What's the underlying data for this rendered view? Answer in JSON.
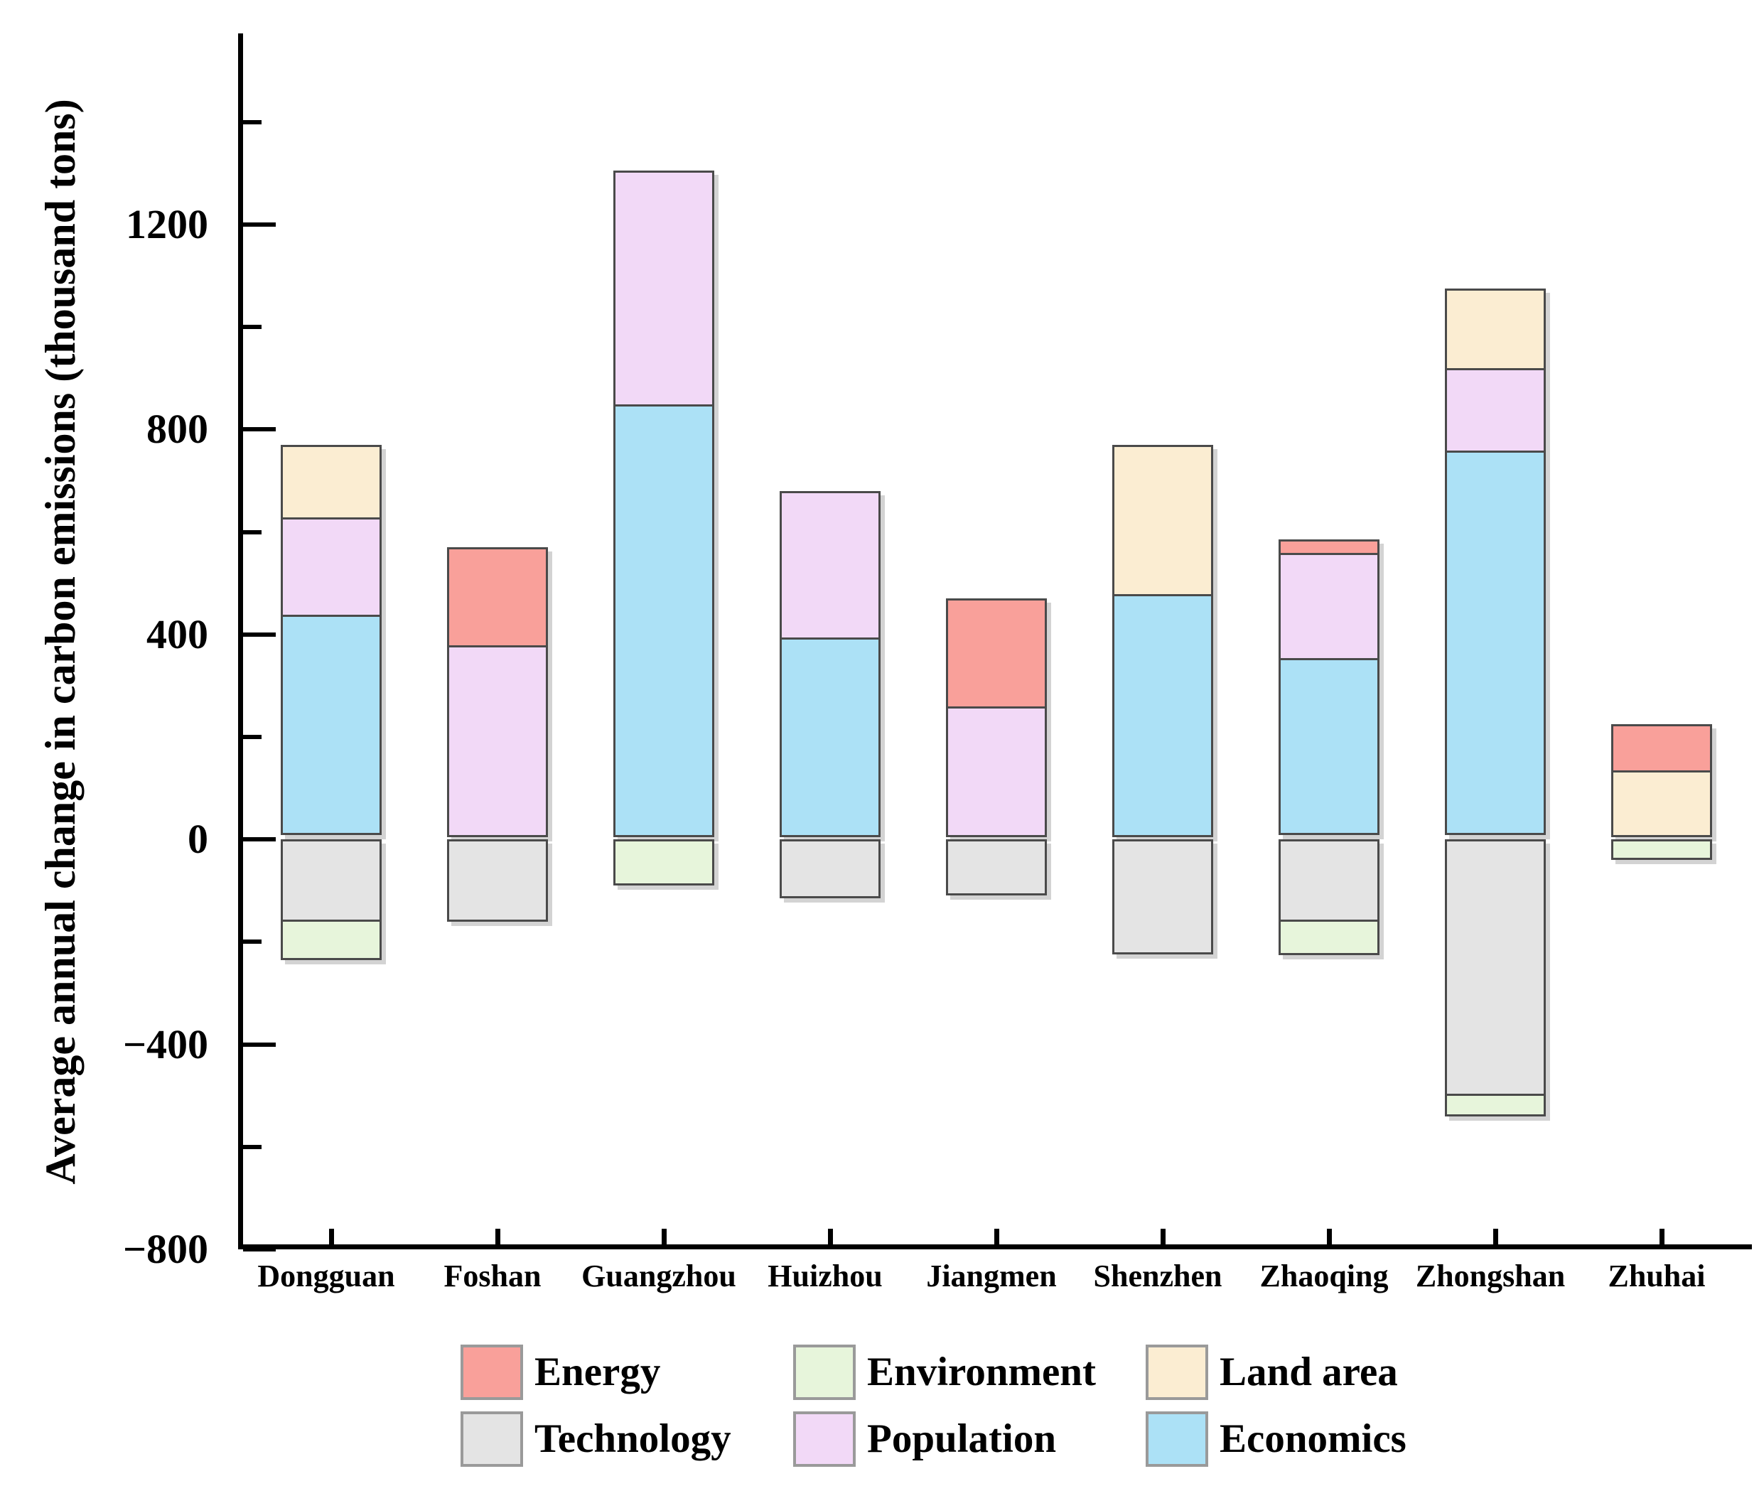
{
  "chart_data": {
    "type": "bar",
    "stacked": true,
    "orientation": "vertical",
    "ylabel": "Average annual change in carbon emissions (thousand tons)",
    "xlabel": "",
    "units": "thousand tons",
    "categories": [
      "Dongguan",
      "Foshan",
      "Guangzhou",
      "Huizhou",
      "Jiangmen",
      "Shenzhen",
      "Zhaoqing",
      "Zhongshan",
      "Zhuhai"
    ],
    "series": [
      {
        "name": "Energy",
        "color": "#f9a09a",
        "values": [
          0,
          195,
          0,
          0,
          215,
          0,
          30,
          0,
          95
        ]
      },
      {
        "name": "Environment",
        "color": "#e7f5db",
        "values": [
          -80,
          0,
          -90,
          0,
          0,
          0,
          -70,
          -45,
          -40
        ]
      },
      {
        "name": "Land area",
        "color": "#fbedd2",
        "values": [
          145,
          0,
          0,
          0,
          0,
          295,
          0,
          160,
          130
        ]
      },
      {
        "name": "Technology",
        "color": "#e4e4e4",
        "values": [
          -160,
          -160,
          0,
          -115,
          -110,
          -225,
          -160,
          -500,
          0
        ]
      },
      {
        "name": "Population",
        "color": "#f2d9f7",
        "values": [
          195,
          375,
          460,
          290,
          255,
          0,
          210,
          165,
          0
        ]
      },
      {
        "name": "Economics",
        "color": "#ace1f6",
        "values": [
          430,
          0,
          845,
          390,
          0,
          475,
          345,
          750,
          0
        ]
      }
    ],
    "stacking_rule": "positives stacked upward from zero in order Economics, Population, Land area, Energy; negatives stacked downward in order Technology, Environment",
    "ylim": [
      -800,
      1573
    ],
    "y_major_ticks": [
      1200,
      800,
      400,
      0,
      -400,
      -800
    ],
    "y_major_tick_labels": [
      "1200",
      "800",
      "400",
      "0",
      "−400",
      "−800"
    ],
    "y_minor_ticks": [
      1400,
      1000,
      600,
      200,
      -200,
      -600
    ],
    "grid": false,
    "legend_position": "bottom",
    "legend_rows": [
      [
        "Energy",
        "Environment",
        "Land area"
      ],
      [
        "Technology",
        "Population",
        "Economics"
      ]
    ],
    "segment_border_color": "#4a4a4a"
  }
}
